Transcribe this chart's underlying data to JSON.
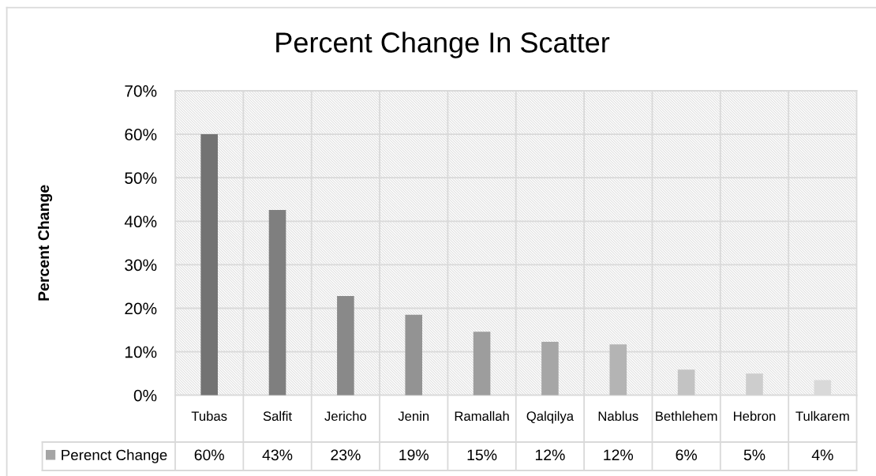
{
  "chart_data": {
    "type": "bar",
    "title": "Percent Change In Scatter",
    "ylabel": "Percent Change",
    "categories": [
      "Tubas",
      "Salfit",
      "Jericho",
      "Jenin",
      "Ramallah",
      "Qalqilya",
      "Nablus",
      "Bethlehem",
      "Hebron",
      "Tulkarem"
    ],
    "series": [
      {
        "name": "Perenct Change",
        "color": "#a5a5a5",
        "colors": [
          "#737373",
          "#7f7f7f",
          "#898989",
          "#939393",
          "#9d9d9d",
          "#a6a6a6",
          "#b4b4b4",
          "#c3c3c3",
          "#cdcdcd",
          "#d9d9d9"
        ],
        "values": [
          60,
          42.6,
          22.8,
          18.5,
          14.6,
          12.3,
          11.7,
          5.9,
          5.0,
          3.5
        ],
        "value_labels": [
          "60%",
          "43%",
          "23%",
          "19%",
          "15%",
          "12%",
          "12%",
          "6%",
          "5%",
          "4%"
        ]
      }
    ],
    "ylim": [
      0,
      70
    ],
    "yticks": [
      {
        "value": 0,
        "label": "0%"
      },
      {
        "value": 10,
        "label": "10%"
      },
      {
        "value": 20,
        "label": "20%"
      },
      {
        "value": 30,
        "label": "30%"
      },
      {
        "value": 40,
        "label": "40%"
      },
      {
        "value": 50,
        "label": "50%"
      },
      {
        "value": 60,
        "label": "60%"
      },
      {
        "value": 70,
        "label": "70%"
      }
    ],
    "grid": true,
    "legend": "bottom left"
  }
}
